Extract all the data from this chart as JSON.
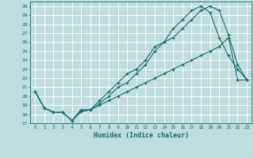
{
  "xlabel": "Humidex (Indice chaleur)",
  "xlim": [
    -0.5,
    23.5
  ],
  "ylim": [
    17,
    30.5
  ],
  "xticks": [
    0,
    1,
    2,
    3,
    4,
    5,
    6,
    7,
    8,
    9,
    10,
    11,
    12,
    13,
    14,
    15,
    16,
    17,
    18,
    19,
    20,
    21,
    22,
    23
  ],
  "yticks": [
    17,
    18,
    19,
    20,
    21,
    22,
    23,
    24,
    25,
    26,
    27,
    28,
    29,
    30
  ],
  "bg_color": "#bedddd",
  "line_color": "#1a6b6b",
  "grid_color": "#ffffff",
  "line1_x": [
    0,
    1,
    2,
    3,
    4,
    5,
    6,
    7,
    8,
    9,
    10,
    11,
    12,
    13,
    14,
    15,
    16,
    17,
    18,
    19,
    20,
    21,
    22,
    23
  ],
  "line1_y": [
    20.5,
    18.7,
    18.2,
    18.2,
    17.3,
    18.5,
    18.5,
    19.5,
    20.5,
    21.5,
    22.5,
    23.0,
    24.0,
    25.5,
    26.0,
    26.5,
    27.5,
    28.5,
    29.5,
    30.0,
    29.5,
    26.8,
    23.5,
    21.8
  ],
  "line2_x": [
    0,
    1,
    2,
    3,
    4,
    5,
    6,
    7,
    8,
    9,
    10,
    11,
    12,
    13,
    14,
    15,
    16,
    17,
    18,
    19,
    20,
    21,
    22,
    23
  ],
  "line2_y": [
    20.5,
    18.7,
    18.2,
    18.2,
    17.3,
    18.3,
    18.5,
    19.2,
    20.0,
    21.0,
    21.5,
    22.5,
    23.5,
    25.0,
    26.0,
    27.5,
    28.5,
    29.5,
    30.0,
    29.3,
    26.5,
    24.5,
    23.0,
    21.8
  ],
  "line3_x": [
    0,
    1,
    2,
    3,
    4,
    5,
    6,
    7,
    8,
    9,
    10,
    11,
    12,
    13,
    14,
    15,
    16,
    17,
    18,
    19,
    20,
    21,
    22,
    23
  ],
  "line3_y": [
    20.5,
    18.7,
    18.2,
    18.2,
    17.3,
    18.3,
    18.5,
    19.0,
    19.5,
    20.0,
    20.5,
    21.0,
    21.5,
    22.0,
    22.5,
    23.0,
    23.5,
    24.0,
    24.5,
    25.0,
    25.5,
    26.5,
    21.8,
    21.8
  ]
}
